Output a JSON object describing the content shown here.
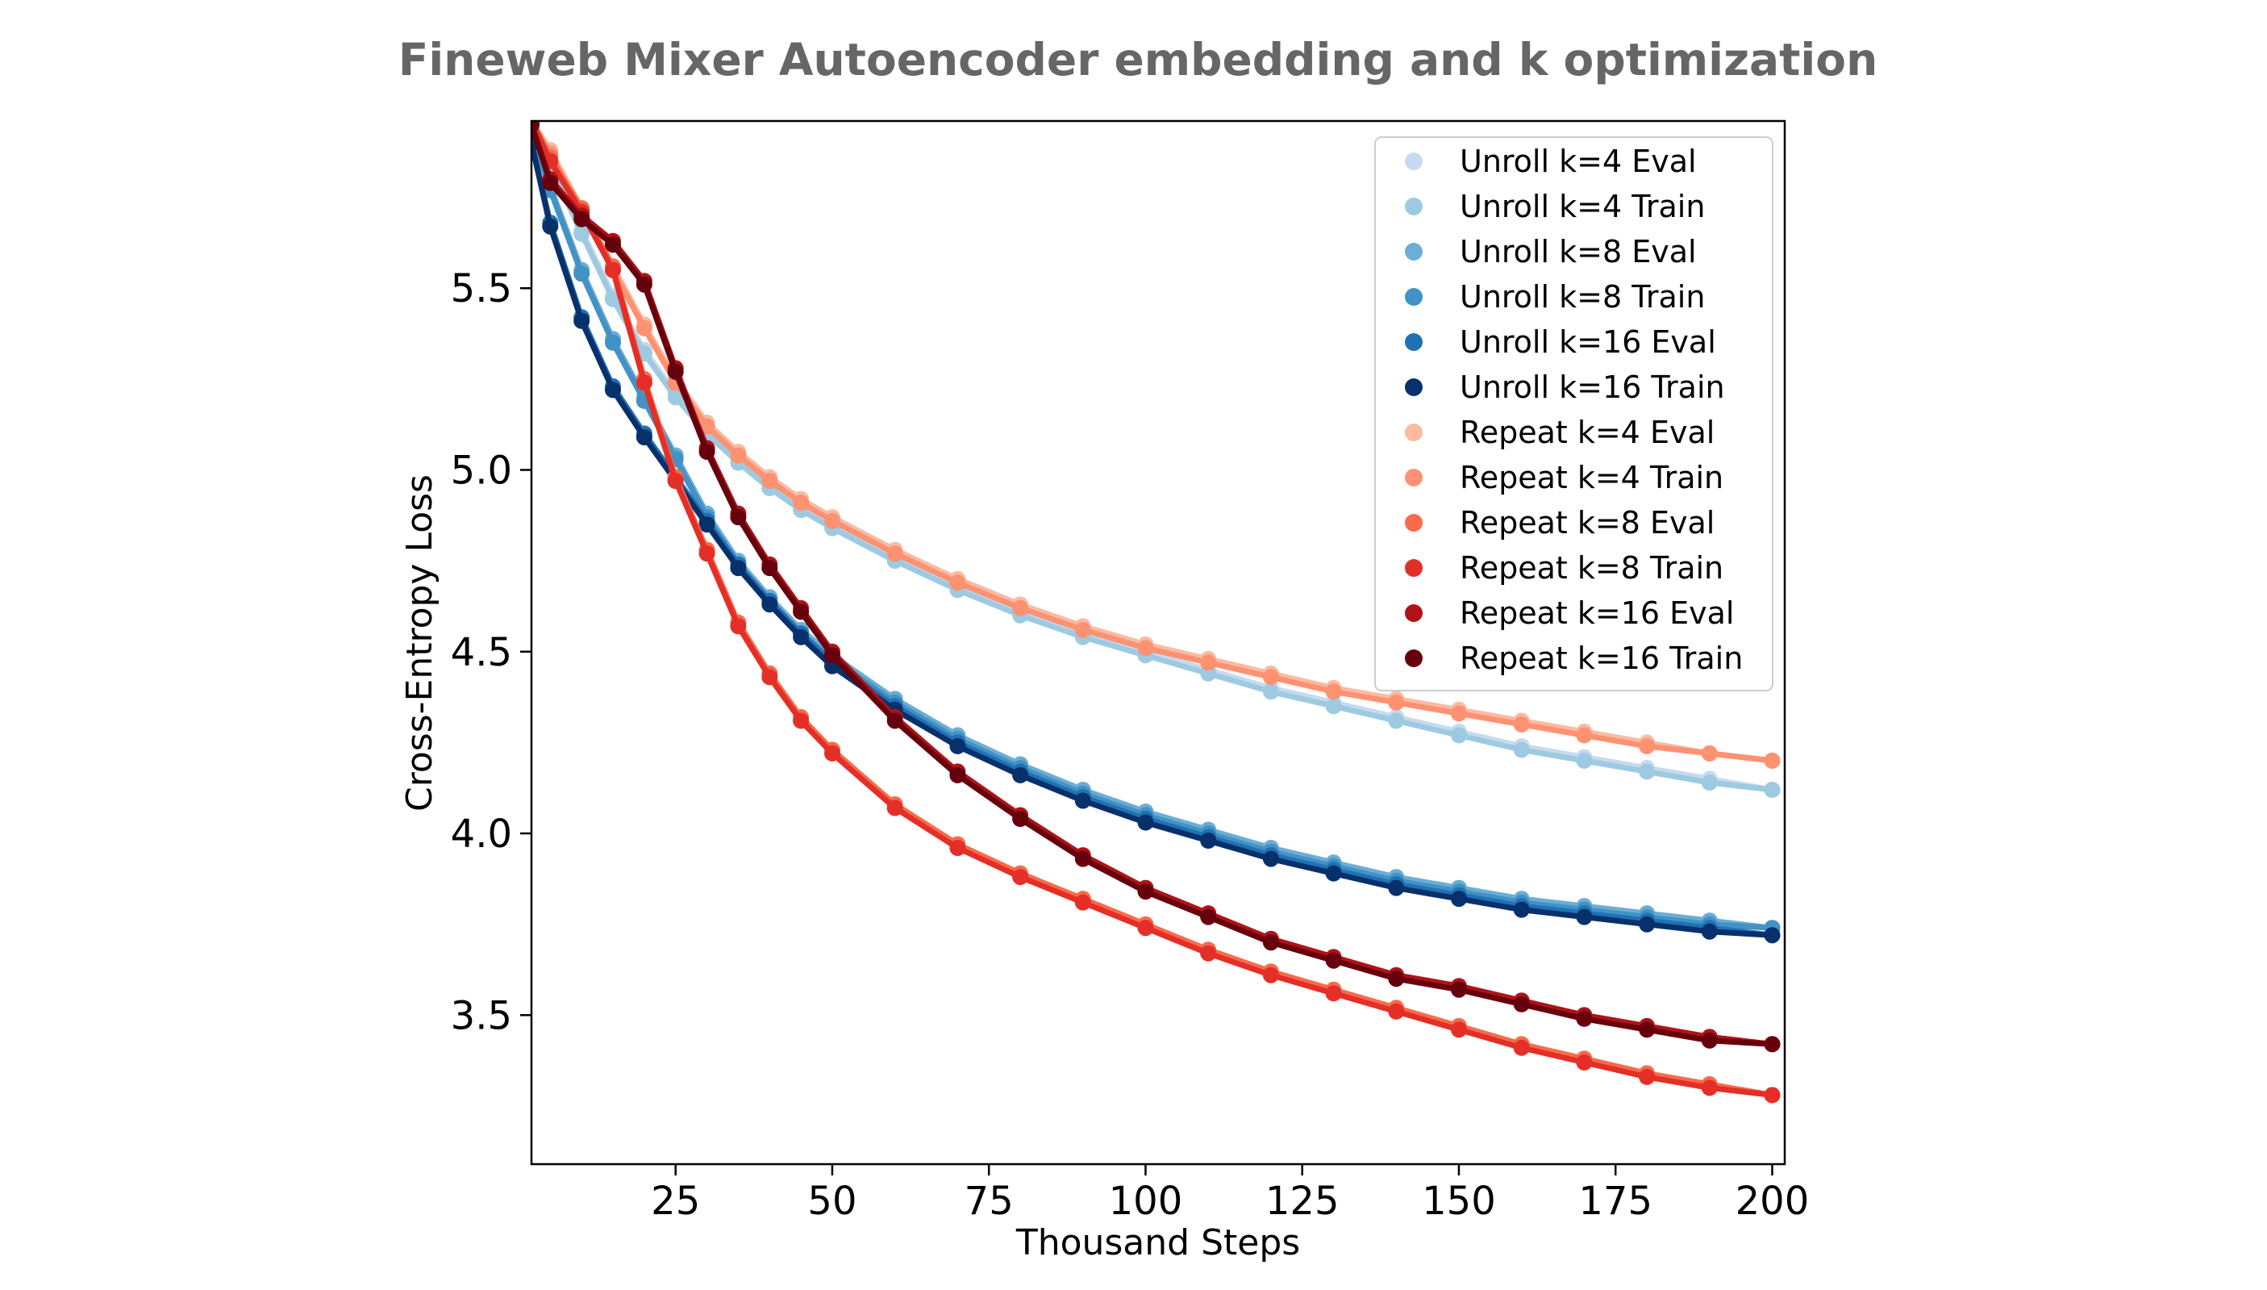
{
  "chart_data": {
    "type": "line",
    "title": "Fineweb Mixer Autoencoder embedding and k optimization",
    "xlabel": "Thousand Steps",
    "ylabel": "Cross-Entropy Loss",
    "xlim": [
      2,
      202
    ],
    "ylim": [
      3.09,
      5.96
    ],
    "xticks": [
      25,
      50,
      75,
      100,
      125,
      150,
      175,
      200
    ],
    "yticks": [
      3.5,
      4.0,
      4.5,
      5.0,
      5.5
    ],
    "grid": false,
    "legend_position": "top-right",
    "x": [
      2,
      5,
      10,
      15,
      20,
      25,
      30,
      35,
      40,
      45,
      50,
      60,
      70,
      80,
      90,
      100,
      110,
      120,
      130,
      140,
      150,
      160,
      170,
      180,
      190,
      200
    ],
    "series": [
      {
        "name": "Unroll k=4 Eval",
        "color": "#c6dbef",
        "values": [
          5.96,
          5.85,
          5.66,
          5.48,
          5.33,
          5.21,
          5.11,
          5.03,
          4.96,
          4.9,
          4.85,
          4.76,
          4.68,
          4.61,
          4.55,
          4.5,
          4.45,
          4.4,
          4.36,
          4.32,
          4.28,
          4.24,
          4.21,
          4.18,
          4.15,
          4.12
        ]
      },
      {
        "name": "Unroll k=4 Train",
        "color": "#9ecae1",
        "values": [
          5.96,
          5.84,
          5.65,
          5.47,
          5.32,
          5.2,
          5.1,
          5.02,
          4.95,
          4.89,
          4.84,
          4.75,
          4.67,
          4.6,
          4.54,
          4.49,
          4.44,
          4.39,
          4.35,
          4.31,
          4.27,
          4.23,
          4.2,
          4.17,
          4.14,
          4.12
        ]
      },
      {
        "name": "Unroll k=8 Eval",
        "color": "#6baed6",
        "values": [
          5.93,
          5.78,
          5.55,
          5.36,
          5.2,
          5.04,
          4.88,
          4.75,
          4.65,
          4.56,
          4.49,
          4.37,
          4.27,
          4.19,
          4.12,
          4.06,
          4.01,
          3.96,
          3.92,
          3.88,
          3.85,
          3.82,
          3.8,
          3.78,
          3.76,
          3.74
        ]
      },
      {
        "name": "Unroll k=8 Train",
        "color": "#4292c6",
        "values": [
          5.93,
          5.77,
          5.54,
          5.35,
          5.19,
          5.03,
          4.87,
          4.74,
          4.64,
          4.55,
          4.48,
          4.36,
          4.26,
          4.18,
          4.11,
          4.05,
          4.0,
          3.95,
          3.91,
          3.87,
          3.84,
          3.81,
          3.79,
          3.77,
          3.75,
          3.74
        ]
      },
      {
        "name": "Unroll k=16 Eval",
        "color": "#2171b5",
        "values": [
          5.9,
          5.68,
          5.42,
          5.23,
          5.1,
          4.98,
          4.86,
          4.74,
          4.64,
          4.55,
          4.47,
          4.35,
          4.25,
          4.17,
          4.1,
          4.04,
          3.99,
          3.94,
          3.9,
          3.86,
          3.83,
          3.8,
          3.78,
          3.76,
          3.74,
          3.72
        ]
      },
      {
        "name": "Unroll k=16 Train",
        "color": "#08306b",
        "values": [
          5.9,
          5.67,
          5.41,
          5.22,
          5.09,
          4.97,
          4.85,
          4.73,
          4.63,
          4.54,
          4.46,
          4.34,
          4.24,
          4.16,
          4.09,
          4.03,
          3.98,
          3.93,
          3.89,
          3.85,
          3.82,
          3.79,
          3.77,
          3.75,
          3.73,
          3.72
        ]
      },
      {
        "name": "Repeat k=4 Eval",
        "color": "#fcbba1",
        "values": [
          5.96,
          5.88,
          5.72,
          5.56,
          5.4,
          5.25,
          5.13,
          5.05,
          4.98,
          4.92,
          4.87,
          4.78,
          4.7,
          4.63,
          4.57,
          4.52,
          4.48,
          4.44,
          4.4,
          4.37,
          4.34,
          4.31,
          4.28,
          4.25,
          4.22,
          4.2
        ]
      },
      {
        "name": "Repeat k=4 Train",
        "color": "#fc9272",
        "values": [
          5.96,
          5.87,
          5.71,
          5.55,
          5.39,
          5.24,
          5.12,
          5.04,
          4.97,
          4.91,
          4.86,
          4.77,
          4.69,
          4.62,
          4.56,
          4.51,
          4.47,
          4.43,
          4.39,
          4.36,
          4.33,
          4.3,
          4.27,
          4.24,
          4.22,
          4.2
        ]
      },
      {
        "name": "Repeat k=8 Eval",
        "color": "#fb6a4a",
        "values": [
          5.96,
          5.86,
          5.72,
          5.56,
          5.25,
          4.98,
          4.78,
          4.58,
          4.44,
          4.32,
          4.23,
          4.08,
          3.97,
          3.89,
          3.82,
          3.75,
          3.68,
          3.62,
          3.57,
          3.52,
          3.47,
          3.42,
          3.38,
          3.34,
          3.31,
          3.28
        ]
      },
      {
        "name": "Repeat k=8 Train",
        "color": "#e32f27",
        "values": [
          5.96,
          5.85,
          5.71,
          5.55,
          5.24,
          4.97,
          4.77,
          4.57,
          4.43,
          4.31,
          4.22,
          4.07,
          3.96,
          3.88,
          3.81,
          3.74,
          3.67,
          3.61,
          3.56,
          3.51,
          3.46,
          3.41,
          3.37,
          3.33,
          3.3,
          3.28
        ]
      },
      {
        "name": "Repeat k=16 Eval",
        "color": "#b11218",
        "values": [
          5.95,
          5.8,
          5.7,
          5.63,
          5.52,
          5.28,
          5.06,
          4.88,
          4.74,
          4.62,
          4.5,
          4.32,
          4.17,
          4.05,
          3.94,
          3.85,
          3.78,
          3.71,
          3.66,
          3.61,
          3.58,
          3.54,
          3.5,
          3.47,
          3.44,
          3.42
        ]
      },
      {
        "name": "Repeat k=16 Train",
        "color": "#67000d",
        "values": [
          5.95,
          5.79,
          5.69,
          5.62,
          5.51,
          5.27,
          5.05,
          4.87,
          4.73,
          4.61,
          4.49,
          4.31,
          4.16,
          4.04,
          3.93,
          3.84,
          3.77,
          3.7,
          3.65,
          3.6,
          3.57,
          3.53,
          3.49,
          3.46,
          3.43,
          3.42
        ]
      }
    ]
  }
}
